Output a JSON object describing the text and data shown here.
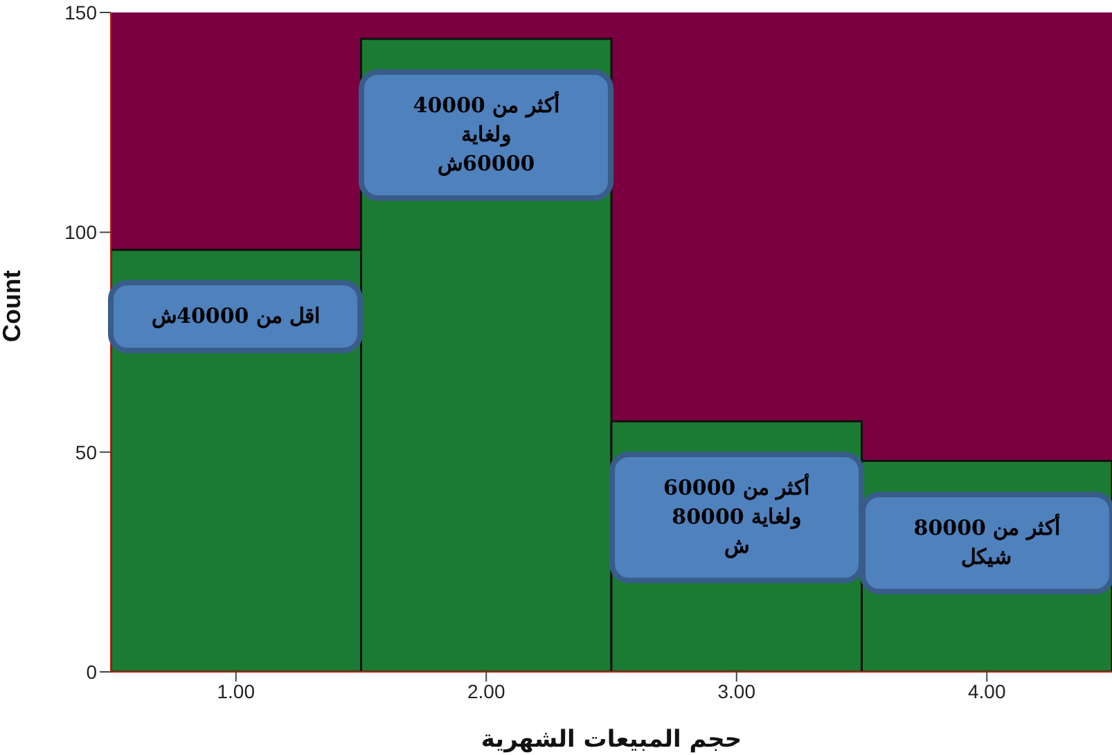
{
  "chart_data": {
    "type": "histogram",
    "xlabel": "حجم المبيعات الشهرية",
    "ylabel": "Count",
    "bins": [
      0.5,
      1.5,
      2.5,
      3.5,
      4.5
    ],
    "values": [
      96,
      144,
      57,
      48
    ],
    "color": "#1c7b32",
    "xlim": [
      0.5,
      4.5
    ],
    "xticks": [
      {
        "value": 1,
        "label": "1.00"
      },
      {
        "value": 2,
        "label": "2.00"
      },
      {
        "value": 3,
        "label": "3.00"
      },
      {
        "value": 4,
        "label": "4.00"
      }
    ],
    "ylim": [
      0,
      150
    ],
    "yticks": [
      0,
      50,
      100,
      150
    ],
    "grid": false,
    "legend": false,
    "annotations": [
      "اقل من 40000ش",
      "أكثر من 40000\nولغاية\n60000ش",
      "أكثر من 60000\nولغاية 80000\nش",
      "أكثر من 80000\nشيكل"
    ]
  }
}
